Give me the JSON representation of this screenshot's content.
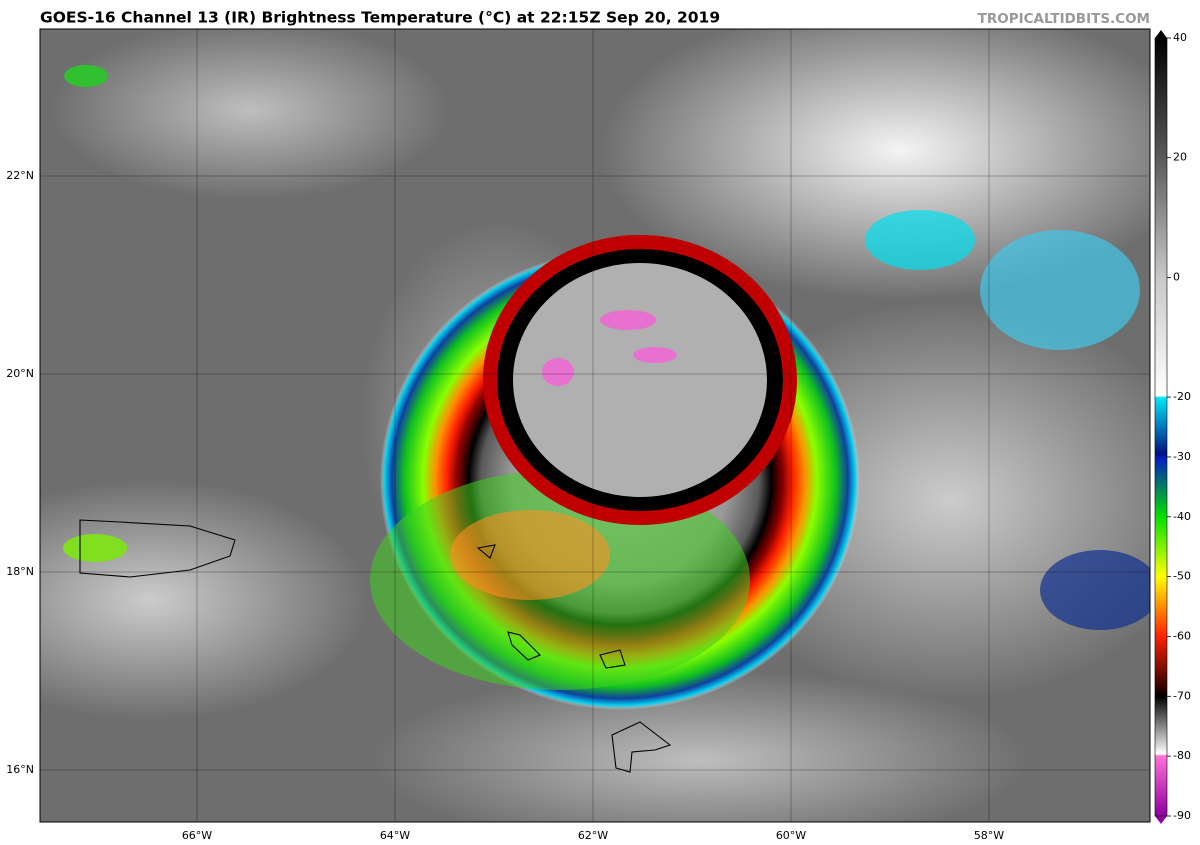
{
  "header": {
    "title": "GOES-16 Channel 13 (IR) Brightness Temperature (°C) at 22:15Z Sep 20, 2019",
    "watermark": "TROPICALTIDBITS.COM"
  },
  "map": {
    "lat_labels": [
      "22°N",
      "20°N",
      "18°N",
      "16°N"
    ],
    "lon_labels": [
      "66°W",
      "64°W",
      "62°W",
      "60°W",
      "58°W"
    ]
  },
  "colorbar": {
    "lim": [
      -90,
      40
    ],
    "ticks": [
      40,
      20,
      0,
      -20,
      -30,
      -40,
      -50,
      -60,
      -70,
      -80,
      -90
    ]
  }
}
